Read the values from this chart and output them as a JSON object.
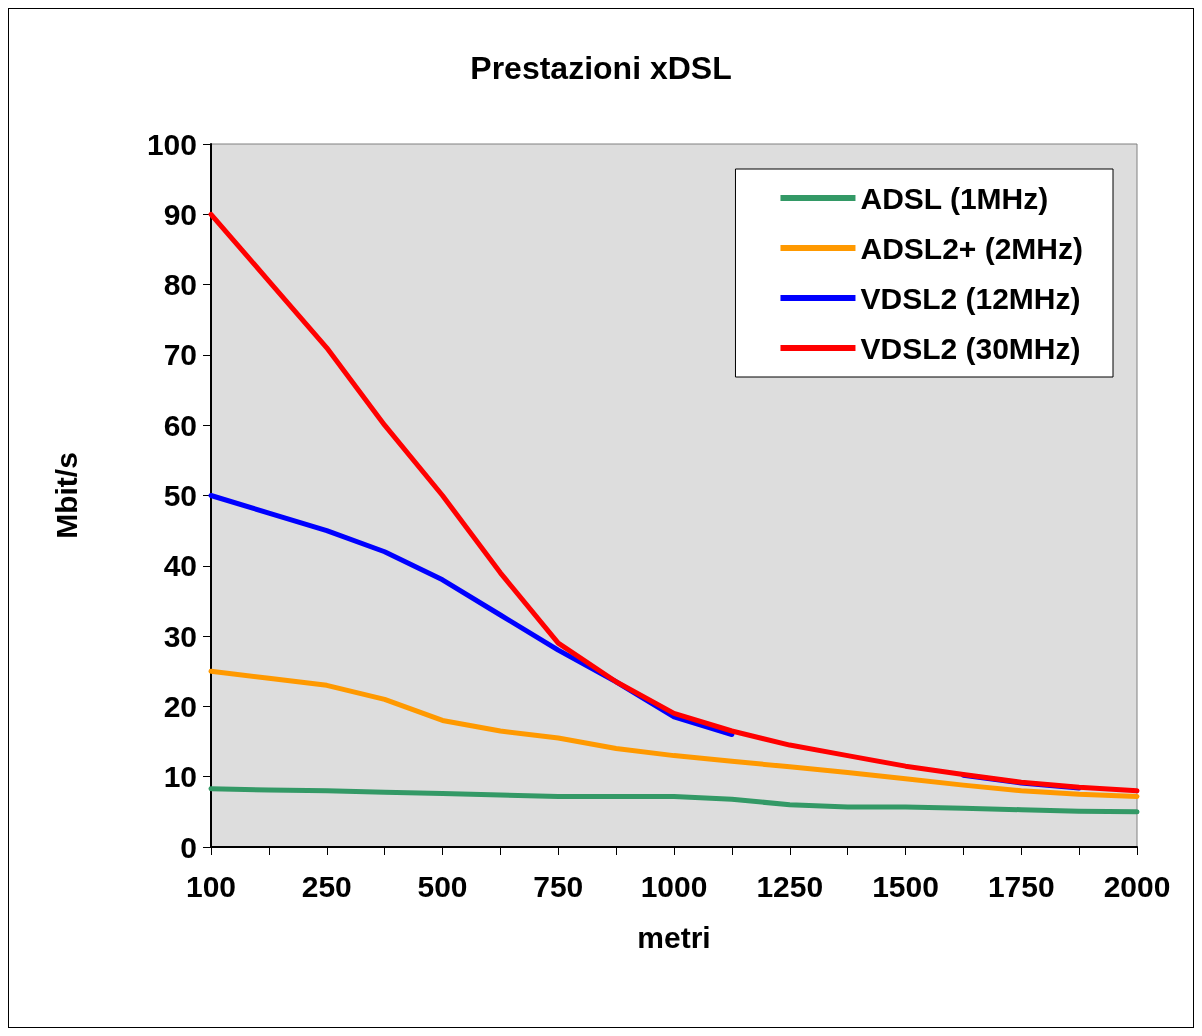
{
  "chart_data": {
    "type": "line",
    "title": "Prestazioni xDSL",
    "xlabel": "metri",
    "ylabel": "Mbit/s",
    "categories": [
      "100",
      null,
      "250",
      null,
      "500",
      null,
      "750",
      null,
      "1000",
      null,
      "1250",
      null,
      "1500",
      null,
      "1750",
      null,
      "2000"
    ],
    "series": [
      {
        "name": "ADSL (1MHz)",
        "color": "#339966",
        "values": [
          8.3,
          8.1,
          8,
          7.8,
          7.6,
          7.4,
          7.2,
          7.2,
          7.2,
          6.8,
          6,
          5.7,
          5.7,
          5.5,
          5.3,
          5.1,
          5
        ]
      },
      {
        "name": "ADSL2+ (2MHz)",
        "color": "#ff9900",
        "values": [
          25,
          24,
          23,
          21,
          18,
          16.5,
          15.5,
          14,
          13,
          12.2,
          11.4,
          10.6,
          9.7,
          8.8,
          8,
          7.5,
          7.2
        ]
      },
      {
        "name": "VDSL2 (12MHz)",
        "color": "#0000ff",
        "values": [
          50,
          47.5,
          45,
          42,
          38,
          33,
          28,
          23.5,
          18.5,
          16,
          null,
          null,
          null,
          10.2,
          9.1,
          8.4,
          null
        ]
      },
      {
        "name": "VDSL2 (30MHz)",
        "color": "#ff0000",
        "values": [
          90,
          80.5,
          71,
          60,
          50,
          39,
          29,
          23.5,
          19,
          16.5,
          14.5,
          13,
          11.5,
          10.3,
          9.2,
          8.5,
          8
        ]
      }
    ],
    "ylim": [
      0,
      100
    ],
    "yticks": [
      0,
      10,
      20,
      30,
      40,
      50,
      60,
      70,
      80,
      90,
      100
    ],
    "grid": false,
    "legend": "top right",
    "marker": "none",
    "line_style": "solid"
  }
}
